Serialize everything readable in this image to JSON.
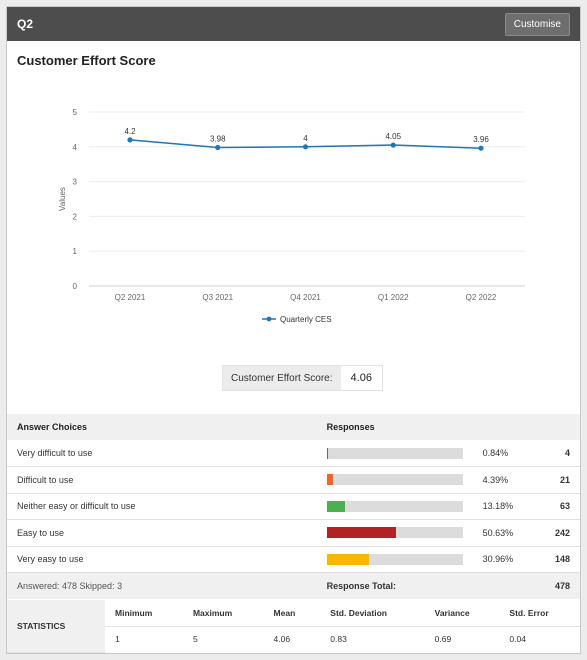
{
  "header": {
    "title": "Q2",
    "customise_label": "Customise"
  },
  "chart_data": {
    "type": "line",
    "title": "Customer Effort Score",
    "categories": [
      "Q2 2021",
      "Q3 2021",
      "Q4 2021",
      "Q1 2022",
      "Q2 2022"
    ],
    "series": [
      {
        "name": "Quarterly CES",
        "values": [
          4.2,
          3.98,
          4,
          4.05,
          3.96
        ],
        "color": "#1f77b4"
      }
    ],
    "value_labels": [
      "4.2",
      "3.98",
      "4",
      "4.05",
      "3.96"
    ],
    "ylabel": "Values",
    "ylim": [
      0,
      5
    ],
    "yticks": [
      "0",
      "1",
      "2",
      "3",
      "4",
      "5"
    ],
    "grid": true,
    "legend": "bottom"
  },
  "score": {
    "label": "Customer Effort Score:",
    "value": "4.06"
  },
  "responses": {
    "header_choices": "Answer Choices",
    "header_responses": "Responses",
    "rows": [
      {
        "label": "Very difficult to use",
        "percent": "0.84%",
        "fraction": 0.0084,
        "count": "4",
        "color": "#2a7ab8"
      },
      {
        "label": "Difficult to use",
        "percent": "4.39%",
        "fraction": 0.0439,
        "count": "21",
        "color": "#e8692a"
      },
      {
        "label": "Neither easy or difficult to use",
        "percent": "13.18%",
        "fraction": 0.1318,
        "count": "63",
        "color": "#4caf50"
      },
      {
        "label": "Easy to use",
        "percent": "50.63%",
        "fraction": 0.5063,
        "count": "242",
        "color": "#b22222"
      },
      {
        "label": "Very easy to use",
        "percent": "30.96%",
        "fraction": 0.3096,
        "count": "148",
        "color": "#f5b800"
      }
    ],
    "answered": "Answered: 478  Skipped: 3",
    "total_label": "Response Total:",
    "total": "478"
  },
  "statistics": {
    "label": "STATISTICS",
    "headers": [
      "Minimum",
      "Maximum",
      "Mean",
      "Std. Deviation",
      "Variance",
      "Std. Error"
    ],
    "values": [
      "1",
      "5",
      "4.06",
      "0.83",
      "0.69",
      "0.04"
    ]
  }
}
